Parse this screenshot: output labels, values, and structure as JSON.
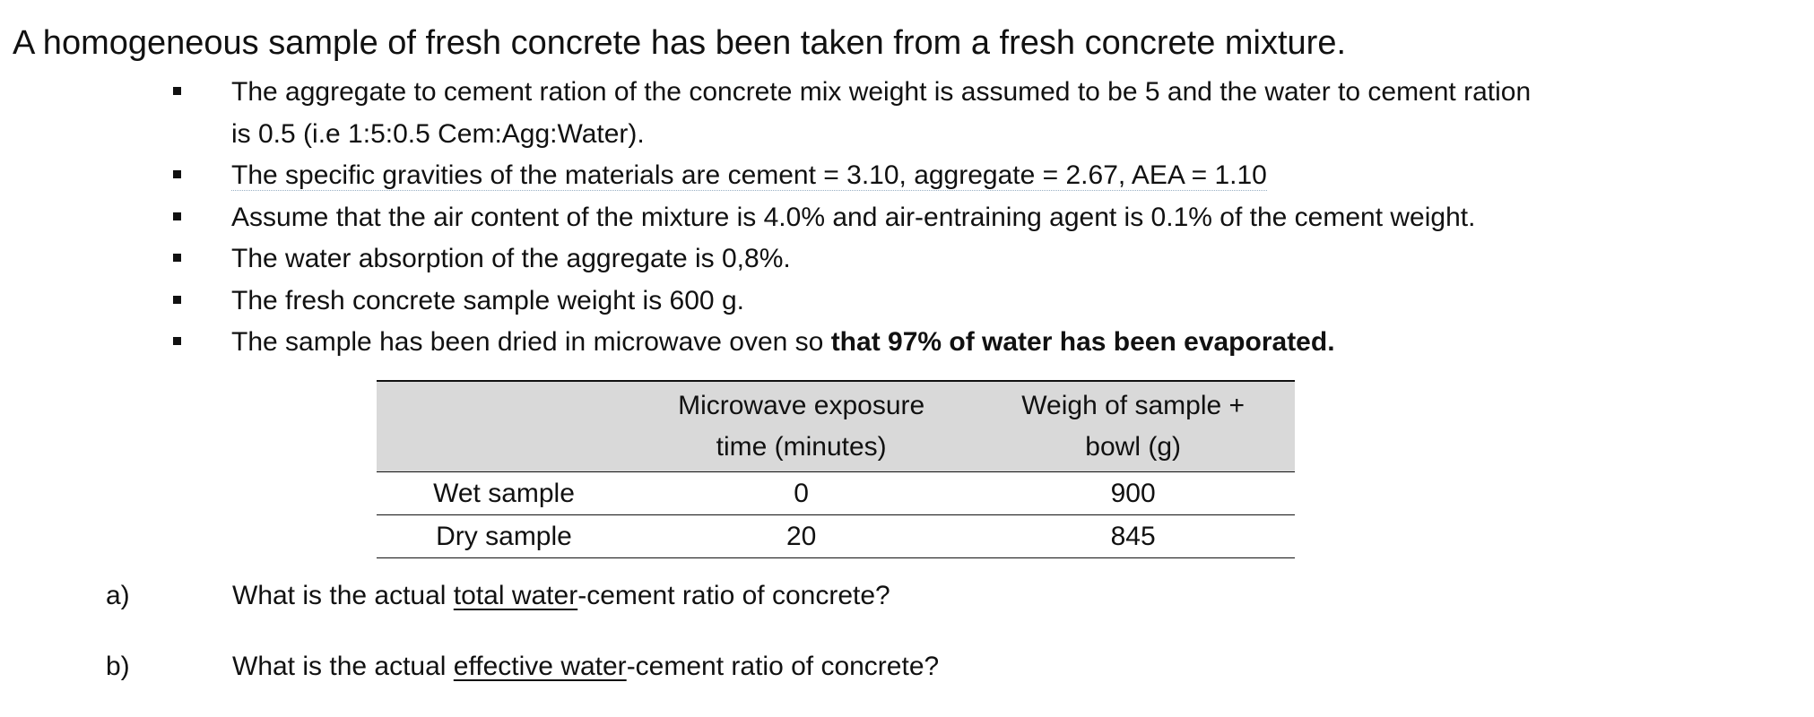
{
  "title": "A homogeneous sample of fresh concrete has been taken from a fresh concrete mixture.",
  "bullets": [
    {
      "line1": "The aggregate to cement ration of the concrete mix weight is assumed to be 5 and the water to cement ration",
      "line2": "is 0.5 (i.e 1:5:0.5 Cem:Agg:Water)."
    },
    {
      "text": "The specific gravities of the materials are cement = 3.10, aggregate = 2.67, AEA = 1.10"
    },
    {
      "text": "Assume that the air content of the mixture is 4.0% and air-entraining agent is 0.1% of the cement weight."
    },
    {
      "text": "The water absorption of the aggregate is 0,8%."
    },
    {
      "text": "The fresh concrete sample weight is 600 g."
    },
    {
      "text_plain": "The sample has been dried in microwave oven so ",
      "text_bold": "that 97% of water has been evaporated."
    }
  ],
  "table": {
    "headers": {
      "label": "",
      "time_line1": "Microwave exposure",
      "time_line2": "time (minutes)",
      "weight_line1": "Weigh of sample +",
      "weight_line2": "bowl (g)"
    },
    "rows": [
      {
        "label": "Wet sample",
        "time": "0",
        "weight": "900"
      },
      {
        "label": "Dry sample",
        "time": "20",
        "weight": "845"
      }
    ]
  },
  "questions": [
    {
      "letter": "a)",
      "before": "What is the actual ",
      "underlined": "total water",
      "after": "-cement ratio of concrete?"
    },
    {
      "letter": "b)",
      "before": "What is the actual ",
      "underlined": "effective water",
      "after": "-cement ratio of concrete?"
    }
  ]
}
